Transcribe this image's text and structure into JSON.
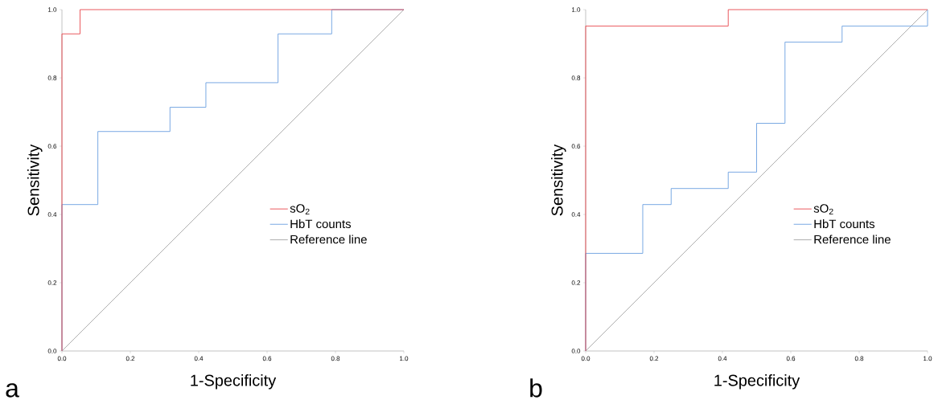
{
  "chart_data": [
    {
      "type": "line",
      "xlabel": "1-Specificity",
      "ylabel": "Sensitivity",
      "xlim": [
        0,
        1
      ],
      "ylim": [
        0,
        1
      ],
      "xticks": [
        {
          "value": 0,
          "label": "0.0"
        },
        {
          "value": 0.2,
          "label": "0.2"
        },
        {
          "value": 0.4,
          "label": "0.4"
        },
        {
          "value": 0.6,
          "label": "0.6"
        },
        {
          "value": 0.8,
          "label": "0.8"
        },
        {
          "value": 1,
          "label": "1.0"
        }
      ],
      "yticks": [
        {
          "value": 0,
          "label": "0.0"
        },
        {
          "value": 0.2,
          "label": "0.2"
        },
        {
          "value": 0.4,
          "label": "0.4"
        },
        {
          "value": 0.6,
          "label": "0.6"
        },
        {
          "value": 0.8,
          "label": "0.8"
        },
        {
          "value": 1,
          "label": "1.0"
        }
      ],
      "series": [
        {
          "name": "sO$_{2}$",
          "color": "#e8474c",
          "x": [
            0,
            0,
            0.053,
            0.053,
            1
          ],
          "values": [
            0,
            0.929,
            0.929,
            1,
            1
          ]
        },
        {
          "name": "HbT counts",
          "color": "#6a9fe0",
          "x": [
            0,
            0,
            0.105,
            0.105,
            0.316,
            0.316,
            0.421,
            0.421,
            0.632,
            0.632,
            0.789,
            0.789,
            1
          ],
          "values": [
            0,
            0.429,
            0.429,
            0.643,
            0.643,
            0.714,
            0.714,
            0.786,
            0.786,
            0.929,
            0.929,
            1,
            1
          ]
        },
        {
          "name": "Reference line",
          "color": "#a6a6a6",
          "x": [
            0,
            1
          ],
          "values": [
            0,
            1
          ]
        }
      ],
      "legend": "right",
      "marker": "none",
      "line_style": "solid",
      "annotations": [
        "a"
      ]
    },
    {
      "type": "line",
      "xlabel": "1-Specificity",
      "ylabel": "Sensitivity",
      "xlim": [
        0,
        1
      ],
      "ylim": [
        0,
        1
      ],
      "xticks": [
        {
          "value": 0,
          "label": "0.0"
        },
        {
          "value": 0.2,
          "label": "0.2"
        },
        {
          "value": 0.4,
          "label": "0.4"
        },
        {
          "value": 0.6,
          "label": "0.6"
        },
        {
          "value": 0.8,
          "label": "0.8"
        },
        {
          "value": 1,
          "label": "1.0"
        }
      ],
      "yticks": [
        {
          "value": 0,
          "label": "0.0"
        },
        {
          "value": 0.2,
          "label": "0.2"
        },
        {
          "value": 0.4,
          "label": "0.4"
        },
        {
          "value": 0.6,
          "label": "0.6"
        },
        {
          "value": 0.8,
          "label": "0.8"
        },
        {
          "value": 1,
          "label": "1.0"
        }
      ],
      "series": [
        {
          "name": "sO$_{2}$",
          "color": "#e8474c",
          "x": [
            0,
            0,
            0.417,
            0.417,
            1
          ],
          "values": [
            0,
            0.952,
            0.952,
            1,
            1
          ]
        },
        {
          "name": "HbT counts",
          "color": "#6a9fe0",
          "x": [
            0,
            0,
            0.167,
            0.167,
            0.25,
            0.25,
            0.417,
            0.417,
            0.5,
            0.5,
            0.583,
            0.583,
            0.75,
            0.75,
            1,
            1
          ],
          "values": [
            0,
            0.286,
            0.286,
            0.429,
            0.429,
            0.476,
            0.476,
            0.524,
            0.524,
            0.667,
            0.667,
            0.905,
            0.905,
            0.952,
            0.952,
            1
          ]
        },
        {
          "name": "Reference line",
          "color": "#a6a6a6",
          "x": [
            0,
            1
          ],
          "values": [
            0,
            1
          ]
        }
      ],
      "legend": "right",
      "marker": "none",
      "line_style": "solid",
      "annotations": [
        "b"
      ]
    }
  ]
}
